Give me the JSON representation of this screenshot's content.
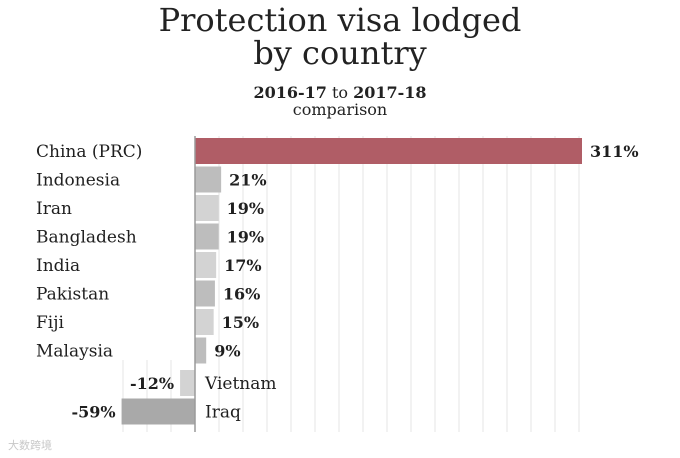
{
  "title_line1": "Protection visa lodged",
  "title_line2": "by country",
  "period_from": "2016-17",
  "period_sep": "to",
  "period_to": "2017-18",
  "subtitle": "comparison",
  "watermark": "大数跨境",
  "colors": {
    "highlight": "#b05d66",
    "bar_dark": "#a9a9a9",
    "bar_mid": "#bdbdbd",
    "bar_light": "#d3d3d3",
    "grid": "#e4e4e4",
    "axis": "#9a9a9a",
    "text": "#1f1f1f"
  },
  "chart_data": {
    "type": "bar",
    "orientation": "horizontal",
    "title": "Protection visa lodged by country",
    "subtitle": "2016-17 to 2017-18 comparison",
    "unit": "%",
    "xlim": [
      -59,
      311
    ],
    "grid": true,
    "categories": [
      "China (PRC)",
      "Indonesia",
      "Iran",
      "Bangladesh",
      "India",
      "Pakistan",
      "Fiji",
      "Malaysia",
      "Vietnam",
      "Iraq"
    ],
    "values": [
      311,
      21,
      19,
      19,
      17,
      16,
      15,
      9,
      -12,
      -59
    ],
    "value_labels": [
      "311%",
      "21%",
      "19%",
      "19%",
      "17%",
      "16%",
      "15%",
      "9%",
      "-12%",
      "-59%"
    ],
    "bar_tones": [
      "highlight",
      "bar_mid",
      "bar_light",
      "bar_mid",
      "bar_light",
      "bar_mid",
      "bar_light",
      "bar_mid",
      "bar_light",
      "bar_dark"
    ]
  }
}
